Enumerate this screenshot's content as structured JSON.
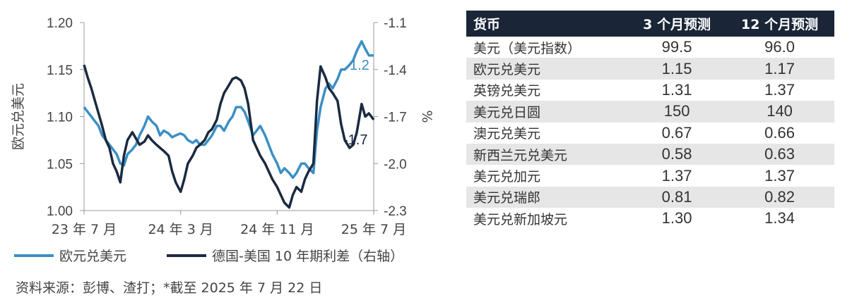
{
  "chart_data": {
    "type": "line",
    "ylabel": "欧元兑美元",
    "y2label": "%",
    "ylim": [
      1.0,
      1.2
    ],
    "y2lim": [
      -2.3,
      -1.1
    ],
    "yticks": [
      "1.00",
      "1.05",
      "1.10",
      "1.15",
      "1.20"
    ],
    "y2ticks": [
      "-1.1",
      "-1.4",
      "-1.7",
      "-2.0",
      "-2.3"
    ],
    "xtick_labels": [
      "23 年 7 月",
      "24 年 3 月",
      "24 年 11 月",
      "25 年 7 月"
    ],
    "xlim": [
      0,
      24
    ],
    "x_unit": "months since 23 年 7 月",
    "xtick_positions": [
      0,
      8,
      16,
      24
    ],
    "grid": false,
    "series": [
      {
        "name": "欧元兑美元",
        "axis": "left",
        "color": "#3b8fc4",
        "end_label": "1.2",
        "x": [
          0,
          0.3,
          0.6,
          0.9,
          1.2,
          1.5,
          1.8,
          2.1,
          2.4,
          2.7,
          3,
          3.3,
          3.6,
          4,
          4.3,
          4.6,
          5,
          5.3,
          5.6,
          6,
          6.3,
          6.6,
          7,
          7.3,
          7.6,
          8,
          8.3,
          8.6,
          9,
          9.3,
          9.6,
          10,
          10.3,
          10.6,
          11,
          11.3,
          11.6,
          12,
          12.3,
          12.6,
          13,
          13.3,
          13.6,
          14,
          14.3,
          14.6,
          15,
          15.3,
          15.6,
          16,
          16.3,
          16.6,
          17,
          17.3,
          17.6,
          18,
          18.3,
          18.6,
          19,
          19.3,
          19.6,
          20,
          20.3,
          20.6,
          21,
          21.3,
          21.6,
          22,
          22.3,
          22.6,
          23,
          23.3,
          23.6,
          24
        ],
        "y": [
          1.11,
          1.105,
          1.1,
          1.095,
          1.09,
          1.08,
          1.075,
          1.07,
          1.065,
          1.06,
          1.05,
          1.048,
          1.06,
          1.065,
          1.07,
          1.08,
          1.09,
          1.1,
          1.095,
          1.09,
          1.08,
          1.085,
          1.082,
          1.078,
          1.08,
          1.082,
          1.08,
          1.075,
          1.072,
          1.075,
          1.07,
          1.07,
          1.075,
          1.08,
          1.09,
          1.09,
          1.085,
          1.095,
          1.1,
          1.11,
          1.11,
          1.105,
          1.095,
          1.08,
          1.085,
          1.09,
          1.08,
          1.07,
          1.06,
          1.05,
          1.04,
          1.045,
          1.04,
          1.035,
          1.04,
          1.05,
          1.05,
          1.045,
          1.04,
          1.085,
          1.11,
          1.13,
          1.135,
          1.13,
          1.14,
          1.15,
          1.15,
          1.155,
          1.16,
          1.17,
          1.18,
          1.172,
          1.165,
          1.165
        ]
      },
      {
        "name": "德国-美国 10 年期利差（右轴）",
        "axis": "right",
        "color": "#1b2a40",
        "end_label": "-1.7",
        "x": [
          0,
          0.3,
          0.6,
          0.9,
          1.2,
          1.5,
          1.8,
          2.1,
          2.4,
          2.7,
          3,
          3.3,
          3.6,
          4,
          4.3,
          4.6,
          5,
          5.3,
          5.6,
          6,
          6.3,
          6.6,
          7,
          7.3,
          7.6,
          8,
          8.3,
          8.6,
          9,
          9.3,
          9.6,
          10,
          10.3,
          10.6,
          11,
          11.3,
          11.6,
          12,
          12.3,
          12.6,
          13,
          13.3,
          13.6,
          14,
          14.3,
          14.6,
          15,
          15.3,
          15.6,
          16,
          16.3,
          16.6,
          17,
          17.3,
          17.6,
          18,
          18.3,
          18.6,
          19,
          19.3,
          19.6,
          20,
          20.3,
          20.6,
          21,
          21.3,
          21.6,
          22,
          22.3,
          22.6,
          23,
          23.3,
          23.6,
          24
        ],
        "y": [
          -1.37,
          -1.45,
          -1.52,
          -1.6,
          -1.68,
          -1.76,
          -1.85,
          -1.9,
          -2.0,
          -2.05,
          -2.12,
          -1.95,
          -1.85,
          -1.8,
          -1.84,
          -1.88,
          -1.86,
          -1.82,
          -1.85,
          -1.88,
          -1.9,
          -1.92,
          -1.95,
          -2.05,
          -2.12,
          -2.18,
          -2.1,
          -2.0,
          -1.95,
          -1.9,
          -1.88,
          -1.85,
          -1.8,
          -1.78,
          -1.72,
          -1.62,
          -1.55,
          -1.5,
          -1.46,
          -1.45,
          -1.47,
          -1.52,
          -1.62,
          -1.85,
          -1.9,
          -1.95,
          -2.0,
          -2.05,
          -2.1,
          -2.15,
          -2.2,
          -2.25,
          -2.28,
          -2.2,
          -2.15,
          -2.18,
          -2.1,
          -2.05,
          -2.0,
          -1.6,
          -1.38,
          -1.45,
          -1.52,
          -1.55,
          -1.6,
          -1.75,
          -1.85,
          -1.9,
          -1.88,
          -1.8,
          -1.62,
          -1.7,
          -1.68,
          -1.72
        ]
      }
    ]
  },
  "table": {
    "headers": [
      "货币",
      "3 个月预测",
      "12 个月预测"
    ],
    "rows": [
      [
        "美元（美元指数）",
        "99.5",
        "96.0"
      ],
      [
        "欧元兑美元",
        "1.15",
        "1.17"
      ],
      [
        "英镑兑美元",
        "1.31",
        "1.37"
      ],
      [
        "美元兑日圆",
        "150",
        "140"
      ],
      [
        "澳元兑美元",
        "0.67",
        "0.66"
      ],
      [
        "新西兰元兑美元",
        "0.58",
        "0.63"
      ],
      [
        "美元兑加元",
        "1.37",
        "1.37"
      ],
      [
        "美元兑瑞郎",
        "0.81",
        "0.82"
      ],
      [
        "美元兑新加坡元",
        "1.30",
        "1.34"
      ]
    ]
  },
  "source_note": "资料来源：彭博、渣打；*截至 2025 年 7 月 22 日"
}
